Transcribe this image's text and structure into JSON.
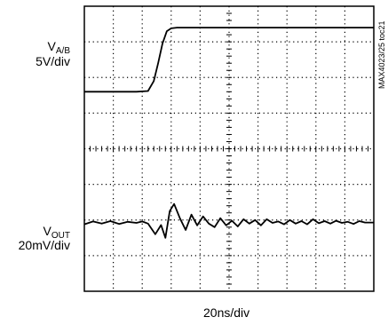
{
  "chart_data": {
    "type": "line",
    "channels": [
      {
        "name_main": "V",
        "name_sub": "A/B",
        "scale": "5V/div",
        "x_div": [
          0,
          1.8,
          2.2,
          2.4,
          2.55,
          2.7,
          2.85,
          3.0,
          3.2,
          3.4,
          10
        ],
        "y_div": [
          5.6,
          5.6,
          5.62,
          5.9,
          6.4,
          6.95,
          7.3,
          7.38,
          7.4,
          7.4,
          7.4
        ]
      },
      {
        "name_main": "V",
        "name_sub": "OUT",
        "scale": "20mV/div",
        "x_div": [
          0,
          0.3,
          0.6,
          0.9,
          1.2,
          1.5,
          1.8,
          2.0,
          2.2,
          2.45,
          2.65,
          2.8,
          2.95,
          3.1,
          3.3,
          3.5,
          3.7,
          3.9,
          4.1,
          4.3,
          4.5,
          4.7,
          4.9,
          5.1,
          5.3,
          5.5,
          5.7,
          5.9,
          6.1,
          6.3,
          6.5,
          6.7,
          6.9,
          7.1,
          7.3,
          7.5,
          7.7,
          7.9,
          8.1,
          8.3,
          8.5,
          8.7,
          8.9,
          9.1,
          9.3,
          9.5,
          9.7,
          10
        ],
        "y_div": [
          1.88,
          1.96,
          1.9,
          1.97,
          1.89,
          1.95,
          1.92,
          1.96,
          1.9,
          1.6,
          1.86,
          1.5,
          2.25,
          2.45,
          2.05,
          1.72,
          2.15,
          1.85,
          2.1,
          1.9,
          1.8,
          2.05,
          1.85,
          1.98,
          1.82,
          2.02,
          1.9,
          2.0,
          1.85,
          2.02,
          1.92,
          1.96,
          1.88,
          2.0,
          1.9,
          1.97,
          1.88,
          2.02,
          1.91,
          1.97,
          1.9,
          1.98,
          1.92,
          1.95,
          1.89,
          1.97,
          1.93,
          1.93
        ]
      }
    ],
    "x_scale": "20ns/div",
    "x_divisions": 10,
    "y_divisions": 8,
    "grid": true,
    "doc_id": "MAX4023/25 toc21"
  }
}
